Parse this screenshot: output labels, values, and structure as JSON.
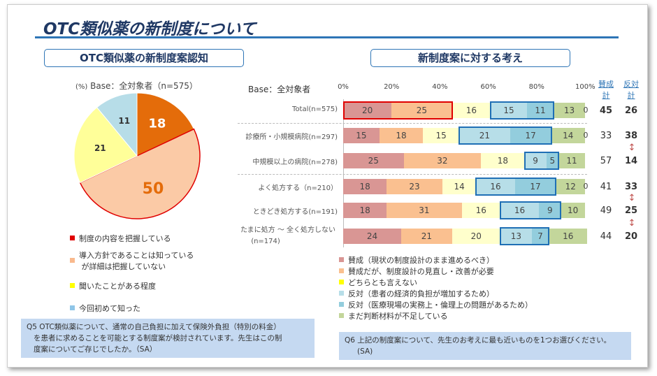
{
  "title": "OTC類似薬の新制度について",
  "left": {
    "header": "OTC類似薬の新制度案認知",
    "unit": "(%)",
    "base": "Base：全対象者（n=575）",
    "legend": [
      "制度の内容を把握している",
      "導入方針であることは知っている",
      "が詳細は把握していない",
      "聞いたことがある程度",
      "今回初めて知った"
    ],
    "question": [
      "Q5 OTC類似薬について、通常の自己負担に加えて保険外負担（特別の料金）",
      "を患者に求めることを可能とする制度案が検討されています。先生はこの制",
      "度案についてご存じでしたか。（SA）"
    ]
  },
  "right": {
    "header": "新制度案に対する考え",
    "base": "Base：全対象者",
    "col_sansei": "賛成計",
    "col_hantai": "反対計",
    "legend": [
      "賛成（現状の制度設計のまま進めるべき）",
      "賛成だが、制度設計の見直し・改善が必要",
      "どちらとも言えない",
      "反対（患者の経済的負担が増加するため）",
      "反対（医療現場の実務上・倫理上の問題があるため）",
      "まだ判断材料が不足している"
    ],
    "question": [
      "Q6 上記の制度案について、先生のお考えに最も近いものを1つお選びください。",
      "(SA)"
    ]
  },
  "chart_data": [
    {
      "type": "pie",
      "unit": "%",
      "categories": [
        "制度の内容を把握している",
        "導入方針であることは知っているが詳細は把握していない",
        "聞いたことがある程度",
        "今回初めて知った"
      ],
      "values": [
        18,
        50,
        21,
        11
      ],
      "labels": [
        "18",
        "50",
        "21",
        "11"
      ],
      "colors": [
        "#e46c0a",
        "#fbcaa6",
        "#ffff99",
        "#b7dde8"
      ],
      "legend_colors": [
        "#e00000",
        "#f9b98d",
        "#ffff00",
        "#8fc6e8"
      ]
    },
    {
      "type": "bar",
      "stacked": true,
      "orientation": "horizontal",
      "xlim": [
        0,
        100
      ],
      "xticks": [
        "0%",
        "20%",
        "40%",
        "60%",
        "80%",
        "100%"
      ],
      "categories": [
        "Total(n=575)",
        "診療所・小規模病院(n=297)",
        "中規模以上の病院(n=278)",
        "よく処方する（n=210）",
        "ときどき処方する(n=191)",
        "たまに処方 ～ 全く処方しない (n=174)"
      ],
      "series": [
        {
          "name": "賛成（現状の制度設計のまま進めるべき）",
          "color": "#d99694",
          "values": [
            20,
            15,
            25,
            18,
            18,
            24
          ]
        },
        {
          "name": "賛成だが、制度設計の見直し・改善が必要",
          "color": "#fac090",
          "values": [
            25,
            18,
            32,
            23,
            31,
            21
          ]
        },
        {
          "name": "どちらとも言えない",
          "color": "#ffffcc",
          "values": [
            16,
            15,
            18,
            14,
            16,
            20
          ]
        },
        {
          "name": "反対（患者の経済的負担が増加するため）",
          "color": "#b7dee8",
          "values": [
            15,
            21,
            9,
            16,
            16,
            13
          ]
        },
        {
          "name": "反対（医療現場の実務上・倫理上の問題があるため）",
          "color": "#93cddd",
          "values": [
            11,
            17,
            5,
            17,
            9,
            7
          ]
        },
        {
          "name": "まだ判断材料が不足している",
          "color": "#c3d69b",
          "values": [
            13,
            14,
            11,
            12,
            10,
            16
          ]
        },
        {
          "name": "",
          "color": "#ffffff",
          "values": [
            0,
            0,
            null,
            0,
            null,
            null
          ]
        }
      ],
      "sansei_total": [
        45,
        33,
        57,
        41,
        49,
        44
      ],
      "hantai_total": [
        26,
        38,
        14,
        33,
        25,
        20
      ],
      "highlight_hantai_bold": [
        true,
        true,
        true,
        true,
        true,
        true
      ],
      "highlight_sansei_bold": [
        true,
        false,
        false,
        false,
        false,
        false
      ]
    }
  ]
}
